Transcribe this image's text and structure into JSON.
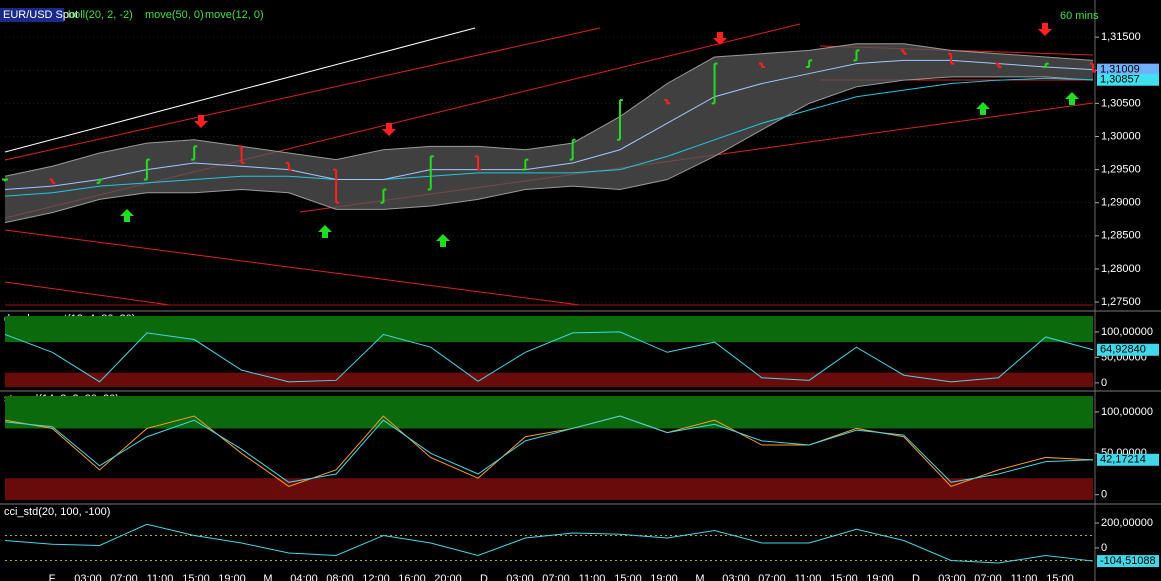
{
  "chart_data": [
    {
      "type": "ohlc",
      "interval": "60 mins",
      "grid": true,
      "series": [
        {
          "name": "EUR/USD Spot",
          "up_color": "#22dd22",
          "down_color": "#ff2020",
          "values": [
            1.2935,
            1.293,
            1.2935,
            1.2965,
            1.2985,
            1.296,
            1.295,
            1.29,
            1.292,
            1.297,
            1.295,
            1.2965,
            1.2995,
            1.3055,
            1.305,
            1.311,
            1.3105,
            1.3115,
            1.313,
            1.3125,
            1.311,
            1.3105,
            1.311,
            1.3098
          ]
        },
        {
          "name": "boll(20, 2, -2)",
          "color": "#9a9a9a",
          "values": [
            1.294,
            1.2955,
            1.2975,
            1.299,
            1.2995,
            1.2985,
            1.2975,
            1.2965,
            1.298,
            1.2985,
            1.2985,
            1.298,
            1.299,
            1.303,
            1.308,
            1.312,
            1.3125,
            1.313,
            1.314,
            1.314,
            1.313,
            1.3125,
            1.312,
            1.3115
          ],
          "lower": [
            1.287,
            1.2885,
            1.2905,
            1.2915,
            1.2915,
            1.292,
            1.2915,
            1.289,
            1.289,
            1.2895,
            1.2905,
            1.292,
            1.2925,
            1.292,
            1.2935,
            1.297,
            1.301,
            1.305,
            1.3075,
            1.3085,
            1.309,
            1.309,
            1.309,
            1.3085
          ]
        },
        {
          "name": "move(50, 0)",
          "color": "#20c8e0",
          "values": [
            1.291,
            1.2915,
            1.2925,
            1.293,
            1.2935,
            1.294,
            1.294,
            1.2935,
            1.2935,
            1.294,
            1.2945,
            1.2945,
            1.2945,
            1.295,
            1.297,
            1.2995,
            1.302,
            1.304,
            1.306,
            1.307,
            1.308,
            1.3085,
            1.3088,
            1.30857
          ]
        },
        {
          "name": "move(12, 0)",
          "color": "#a0c8ff",
          "values": [
            1.292,
            1.2925,
            1.2935,
            1.295,
            1.296,
            1.2955,
            1.295,
            1.2935,
            1.2935,
            1.295,
            1.295,
            1.295,
            1.296,
            1.298,
            1.302,
            1.306,
            1.308,
            1.3095,
            1.311,
            1.3115,
            1.3115,
            1.311,
            1.3105,
            1.31009
          ]
        }
      ],
      "ylim": [
        1.2738,
        1.3194
      ],
      "yticks": [
        {
          "value": 1.275,
          "label": "1,27500"
        },
        {
          "value": 1.28,
          "label": "1,28000"
        },
        {
          "value": 1.285,
          "label": "1,28500"
        },
        {
          "value": 1.29,
          "label": "1,29000"
        },
        {
          "value": 1.295,
          "label": "1,29500"
        },
        {
          "value": 1.3,
          "label": "1,30000"
        },
        {
          "value": 1.305,
          "label": "1,30500"
        },
        {
          "value": 1.31,
          "label": "1,31000"
        },
        {
          "value": 1.315,
          "label": "1,31500"
        }
      ],
      "last_values": [
        {
          "value": 1.31009,
          "label": "1,31009",
          "color": "#70b0ff"
        },
        {
          "value": 1.30857,
          "label": "1,30857",
          "color": "#40e0f0"
        }
      ],
      "time_labels": [
        "F",
        "03:00",
        "07:00",
        "11:00",
        "15:00",
        "19:00",
        "M",
        "04:00",
        "08:00",
        "12:00",
        "16:00",
        "20:00",
        "D",
        "03:00",
        "07:00",
        "11:00",
        "15:00",
        "19:00",
        "M",
        "03:00",
        "07:00",
        "11:00",
        "15:00",
        "19:00",
        "D",
        "03:00",
        "07:00",
        "11:00",
        "15:00"
      ]
    },
    {
      "type": "line",
      "title": "dss_bressert(13, 4, 80, 20)",
      "zones": [
        20,
        80
      ],
      "series": [
        {
          "color": "#40d8e8",
          "values": [
            95,
            60,
            2,
            98,
            85,
            25,
            2,
            5,
            95,
            70,
            3,
            60,
            98,
            100,
            60,
            80,
            10,
            5,
            70,
            15,
            2,
            10,
            90,
            64.9284
          ]
        }
      ],
      "ylim": [
        -14,
        139
      ],
      "yticks": [
        {
          "value": 0,
          "label": "0"
        },
        {
          "value": 50,
          "label": "50,00000"
        },
        {
          "value": 100,
          "label": "100,00000"
        }
      ],
      "last_values": [
        {
          "value": 64.9284,
          "label": "64,92840",
          "color": "#40d8e8"
        }
      ]
    },
    {
      "type": "line",
      "title": "stoc_sl(14, 3, 3, 80, 20)",
      "zones": [
        20,
        80
      ],
      "series": [
        {
          "color": "#ff9a20",
          "values": [
            90,
            80,
            30,
            80,
            95,
            50,
            10,
            30,
            95,
            45,
            20,
            70,
            80,
            95,
            75,
            90,
            60,
            60,
            80,
            70,
            10,
            30,
            45,
            42
          ]
        },
        {
          "color": "#40d8e8",
          "values": [
            88,
            82,
            35,
            70,
            90,
            55,
            15,
            25,
            90,
            50,
            25,
            65,
            80,
            95,
            75,
            85,
            65,
            60,
            78,
            72,
            15,
            25,
            40,
            42.17214
          ]
        }
      ],
      "ylim": [
        -10,
        124
      ],
      "yticks": [
        {
          "value": 0,
          "label": "0"
        },
        {
          "value": 50,
          "label": "50,00000"
        },
        {
          "value": 100,
          "label": "100,00000"
        }
      ],
      "last_values": [
        {
          "value": 42.17214,
          "label": "42,17214",
          "color": "#40d8e8"
        }
      ]
    },
    {
      "type": "line",
      "title": "cci_std(20, 100, -100)",
      "levels": [
        -100,
        100
      ],
      "series": [
        {
          "color": "#40d8e8",
          "values": [
            60,
            30,
            20,
            190,
            100,
            40,
            -40,
            -60,
            100,
            40,
            -60,
            80,
            120,
            110,
            80,
            140,
            40,
            40,
            150,
            60,
            -100,
            -120,
            -60,
            -104.51088
          ]
        }
      ],
      "ylim": [
        -216,
        344
      ],
      "yticks": [
        {
          "value": 0,
          "label": "0"
        },
        {
          "value": 200,
          "label": "200,00000"
        }
      ],
      "last_values": [
        {
          "value": -104.51088,
          "label": "-104,51088",
          "color": "#40d8e8"
        }
      ]
    }
  ]
}
